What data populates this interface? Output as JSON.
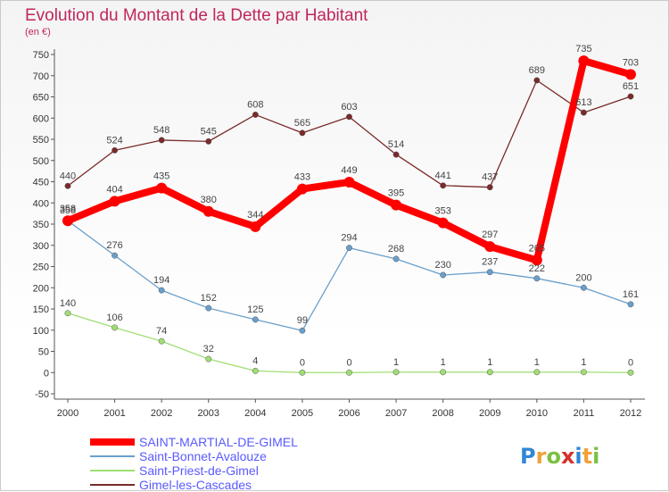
{
  "chart_data": {
    "type": "line",
    "title": "Evolution du Montant de la Dette par Habitant",
    "subtitle": "(en €)",
    "xlabel": "",
    "ylabel": "",
    "ylim": [
      -50,
      750
    ],
    "yticks": [
      -50,
      0,
      50,
      100,
      150,
      200,
      250,
      300,
      350,
      400,
      450,
      500,
      550,
      600,
      650,
      700,
      750
    ],
    "x": [
      "2000",
      "2001",
      "2002",
      "2003",
      "2004",
      "2005",
      "2006",
      "2007",
      "2008",
      "2009",
      "2010",
      "2011",
      "2012"
    ],
    "grid": false,
    "legend_position": "bottom-left",
    "series": [
      {
        "name": "SAINT-MARTIAL-DE-GIMEL",
        "color": "#ff0000",
        "values": [
          358,
          404,
          435,
          380,
          344,
          433,
          449,
          395,
          353,
          297,
          265,
          735,
          703
        ]
      },
      {
        "name": "Saint-Bonnet-Avalouze",
        "color": "#6a9fcb",
        "values": [
          358,
          276,
          194,
          152,
          125,
          99,
          294,
          268,
          230,
          237,
          222,
          200,
          161
        ]
      },
      {
        "name": "Saint-Priest-de-Gimel",
        "color": "#9fde72",
        "values": [
          140,
          106,
          74,
          32,
          4,
          0,
          0,
          1,
          1,
          1,
          1,
          1,
          0
        ]
      },
      {
        "name": "Gimel-les-Cascades",
        "color": "#7a2a2a",
        "values": [
          440,
          524,
          548,
          545,
          608,
          565,
          603,
          514,
          441,
          437,
          689,
          613,
          651
        ]
      }
    ]
  },
  "colors": {
    "title": "#c0265e",
    "axis": "#555555",
    "tick_label": "#333333",
    "legend_text": "#5a5aff",
    "data_label": "#444444"
  },
  "brand": {
    "logo_text": "Proxiti"
  }
}
